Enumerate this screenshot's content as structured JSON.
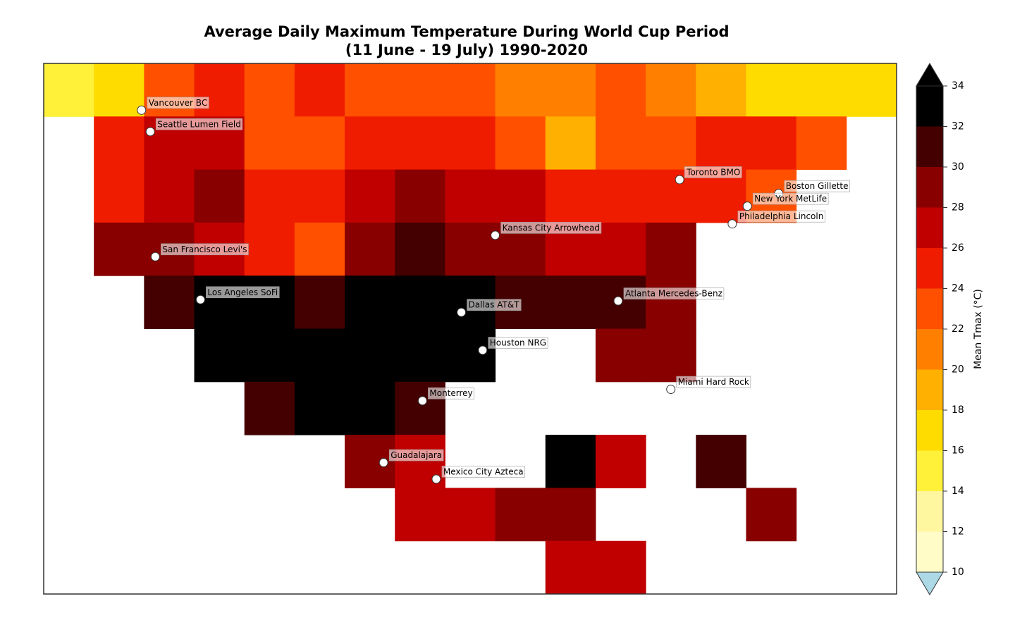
{
  "chart_data": {
    "type": "map",
    "title": "Average Daily Maximum Temperature During World Cup Period",
    "subtitle": "(11 June - 19 July) 1990-2020",
    "xlim": [
      -128,
      -60
    ],
    "ylim": [
      10,
      52
    ],
    "grid": {
      "lon": [
        -128,
        -124,
        -120,
        -116,
        -112,
        -108,
        -104,
        -100,
        -96,
        -92,
        -88,
        -84,
        -80,
        -76,
        -72,
        -68,
        -64,
        -60
      ],
      "lat": [
        52,
        47.8,
        43.6,
        39.4,
        35.2,
        31,
        26.8,
        22.6,
        18.4,
        14.2,
        10
      ],
      "values": [
        [
          15,
          17,
          22,
          24,
          23,
          24,
          23,
          23,
          22,
          21,
          20,
          22,
          21,
          19,
          17,
          16,
          16
        ],
        [
          null,
          24,
          27,
          26,
          22,
          22,
          24,
          24,
          24,
          23,
          19,
          22,
          23,
          24,
          24,
          22,
          null
        ],
        [
          null,
          25,
          27,
          28,
          25,
          24,
          27,
          28,
          27,
          26,
          25,
          24,
          24,
          25,
          23,
          null,
          null
        ],
        [
          null,
          28,
          29,
          27,
          24,
          23,
          29,
          30,
          29,
          28,
          27,
          27,
          28,
          null,
          null,
          null,
          null
        ],
        [
          null,
          null,
          30,
          32,
          32,
          30,
          32,
          33,
          32,
          30,
          30,
          31,
          29,
          null,
          null,
          null,
          null
        ],
        [
          null,
          null,
          null,
          32,
          33,
          33,
          33,
          33,
          33,
          null,
          null,
          28,
          29,
          null,
          null,
          null,
          null
        ],
        [
          null,
          null,
          null,
          null,
          30,
          32,
          32,
          31,
          null,
          null,
          null,
          null,
          null,
          null,
          null,
          null,
          null
        ],
        [
          null,
          null,
          null,
          null,
          null,
          null,
          28,
          27,
          null,
          null,
          32,
          26,
          null,
          30,
          null,
          null,
          null
        ],
        [
          null,
          null,
          null,
          null,
          null,
          null,
          null,
          27,
          26,
          28,
          29,
          null,
          null,
          null,
          28,
          null,
          null
        ],
        [
          null,
          null,
          null,
          null,
          null,
          null,
          null,
          null,
          null,
          null,
          26,
          27,
          null,
          null,
          null,
          null,
          null
        ]
      ]
    },
    "cities": [
      {
        "name": "Vancouver BC",
        "lon": -120.2,
        "lat": 48.3
      },
      {
        "name": "Seattle Lumen Field",
        "lon": -119.5,
        "lat": 46.6
      },
      {
        "name": "Toronto BMO",
        "lon": -77.3,
        "lat": 42.8
      },
      {
        "name": "Boston Gillette",
        "lon": -69.4,
        "lat": 41.7
      },
      {
        "name": "New York MetLife",
        "lon": -71.9,
        "lat": 40.7
      },
      {
        "name": "Philadelphia Lincoln",
        "lon": -73.1,
        "lat": 39.3
      },
      {
        "name": "Kansas City Arrowhead",
        "lon": -92.0,
        "lat": 38.4
      },
      {
        "name": "San Francisco Levi's",
        "lon": -119.1,
        "lat": 36.7
      },
      {
        "name": "Los Angeles SoFi",
        "lon": -115.5,
        "lat": 33.3
      },
      {
        "name": "Dallas AT&T",
        "lon": -94.7,
        "lat": 32.3
      },
      {
        "name": "Atlanta Mercedes-Benz",
        "lon": -82.2,
        "lat": 33.2
      },
      {
        "name": "Houston NRG",
        "lon": -93.0,
        "lat": 29.3
      },
      {
        "name": "Miami Hard Rock",
        "lon": -78.0,
        "lat": 26.2
      },
      {
        "name": "Monterrey",
        "lon": -97.8,
        "lat": 25.3
      },
      {
        "name": "Guadalajara",
        "lon": -100.9,
        "lat": 20.4
      },
      {
        "name": "Mexico City Azteca",
        "lon": -96.7,
        "lat": 19.1
      }
    ],
    "colorbar": {
      "label": "Mean Tmax (°C)",
      "lim": [
        10,
        34
      ],
      "ticks": [
        10,
        12,
        14,
        16,
        18,
        20,
        22,
        24,
        26,
        28,
        30,
        32,
        34
      ],
      "colors": [
        "#fffcc8",
        "#fff6a0",
        "#fff03a",
        "#ffdc00",
        "#ffb000",
        "#ff8000",
        "#ff5000",
        "#f01c00",
        "#c00000",
        "#880000",
        "#440000",
        "#000000"
      ],
      "under_color": "#add8e6",
      "over_color": "#000000"
    }
  }
}
